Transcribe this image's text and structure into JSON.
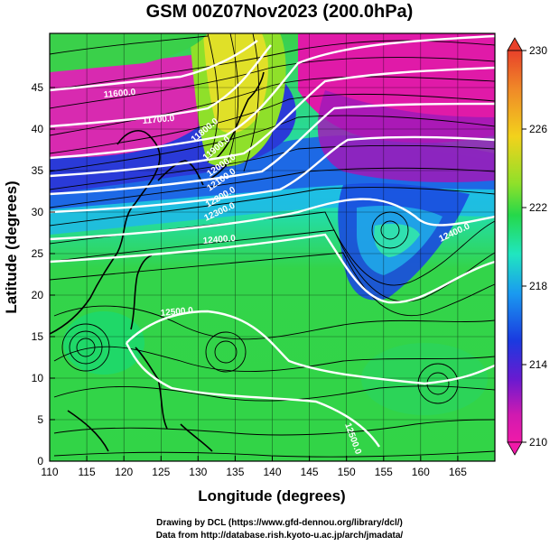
{
  "title": "GSM 00Z07Nov2023 (200.0hPa)",
  "x_axis": {
    "label": "Longitude (degrees)",
    "ticks": [
      "110",
      "115",
      "120",
      "125",
      "130",
      "135",
      "140",
      "145",
      "150",
      "155",
      "160",
      "165"
    ]
  },
  "y_axis": {
    "label": "Latitude  (degrees)",
    "ticks": [
      "0",
      "5",
      "10",
      "15",
      "20",
      "25",
      "30",
      "35",
      "40",
      "45"
    ]
  },
  "colorbar": {
    "labels": [
      "230",
      "226",
      "222",
      "218",
      "214",
      "210"
    ],
    "colors": [
      "#e8412a",
      "#f08a28",
      "#f2d21c",
      "#8fe02a",
      "#25d84a",
      "#20e6c0",
      "#1a9af0",
      "#1a3ae0",
      "#6a1ad0",
      "#d01ab0",
      "#f01aa8"
    ]
  },
  "contour_labels": [
    {
      "text": "11600.0"
    },
    {
      "text": "11700.0"
    },
    {
      "text": "11800.0"
    },
    {
      "text": "11900.0"
    },
    {
      "text": "12000.0"
    },
    {
      "text": "12100.0"
    },
    {
      "text": "12200.0"
    },
    {
      "text": "12300.0"
    },
    {
      "text": "12400.0"
    },
    {
      "text": "12400.0"
    },
    {
      "text": "12500.0"
    },
    {
      "text": "12500.0"
    }
  ],
  "footer": {
    "line1": "Drawing by DCL (https://www.gfd-dennou.org/library/dcl/)",
    "line2": "Data from http://database.rish.kyoto-u.ac.jp/arch/jmadata/"
  }
}
